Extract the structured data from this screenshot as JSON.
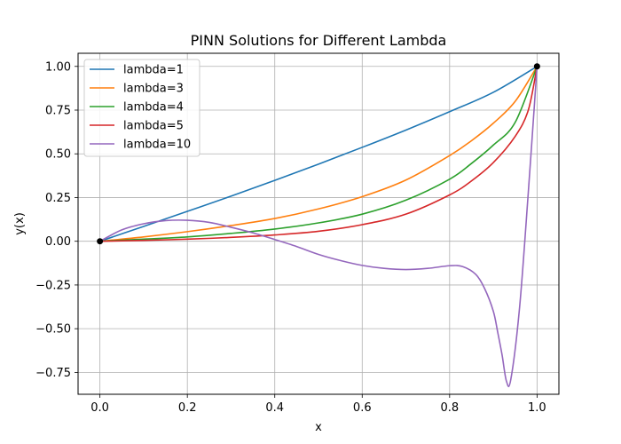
{
  "chart_data": {
    "type": "line",
    "title": "PINN Solutions for Different Lambda",
    "xlabel": "x",
    "ylabel": "y(x)",
    "xlim": [
      -0.05,
      1.05
    ],
    "ylim": [
      -0.875,
      1.075
    ],
    "xticks": [
      0.0,
      0.2,
      0.4,
      0.6,
      0.8,
      1.0
    ],
    "xtick_labels": [
      "0.0",
      "0.2",
      "0.4",
      "0.6",
      "0.8",
      "1.0"
    ],
    "yticks": [
      -0.75,
      -0.5,
      -0.25,
      0.0,
      0.25,
      0.5,
      0.75,
      1.0
    ],
    "ytick_labels": [
      "−0.75",
      "−0.50",
      "−0.25",
      "0.00",
      "0.25",
      "0.50",
      "0.75",
      "1.00"
    ],
    "grid": true,
    "legend_position": "top-left",
    "boundary_points": [
      {
        "x": 0.0,
        "y": 0.0
      },
      {
        "x": 1.0,
        "y": 1.0
      }
    ],
    "series": [
      {
        "name": "lambda=1",
        "color": "#1f77b4",
        "x": [
          0.0,
          0.1,
          0.2,
          0.3,
          0.4,
          0.5,
          0.6,
          0.7,
          0.8,
          0.9,
          1.0
        ],
        "y": [
          0.0,
          0.085,
          0.171,
          0.258,
          0.348,
          0.441,
          0.537,
          0.636,
          0.741,
          0.852,
          1.0
        ]
      },
      {
        "name": "lambda=3",
        "color": "#ff7f0e",
        "x": [
          0.0,
          0.1,
          0.2,
          0.3,
          0.4,
          0.5,
          0.6,
          0.7,
          0.8,
          0.85,
          0.9,
          0.95,
          1.0
        ],
        "y": [
          0.0,
          0.025,
          0.055,
          0.09,
          0.13,
          0.185,
          0.255,
          0.35,
          0.49,
          0.575,
          0.675,
          0.8,
          1.0
        ]
      },
      {
        "name": "lambda=4",
        "color": "#2ca02c",
        "x": [
          0.0,
          0.1,
          0.2,
          0.3,
          0.4,
          0.5,
          0.6,
          0.7,
          0.8,
          0.85,
          0.9,
          0.95,
          1.0
        ],
        "y": [
          0.0,
          0.012,
          0.025,
          0.045,
          0.07,
          0.105,
          0.155,
          0.235,
          0.355,
          0.445,
          0.55,
          0.68,
          1.0
        ]
      },
      {
        "name": "lambda=5",
        "color": "#d62728",
        "x": [
          0.0,
          0.1,
          0.2,
          0.3,
          0.4,
          0.5,
          0.6,
          0.7,
          0.8,
          0.85,
          0.9,
          0.95,
          0.98,
          1.0
        ],
        "y": [
          0.0,
          0.005,
          0.012,
          0.022,
          0.036,
          0.057,
          0.095,
          0.155,
          0.265,
          0.345,
          0.45,
          0.6,
          0.75,
          1.0
        ]
      },
      {
        "name": "lambda=10",
        "color": "#9467bd",
        "x": [
          0.0,
          0.05,
          0.1,
          0.15,
          0.2,
          0.25,
          0.3,
          0.35,
          0.4,
          0.45,
          0.5,
          0.55,
          0.6,
          0.65,
          0.7,
          0.75,
          0.8,
          0.83,
          0.86,
          0.88,
          0.9,
          0.91,
          0.92,
          0.93,
          0.94,
          0.96,
          0.98,
          1.0
        ],
        "y": [
          0.0,
          0.065,
          0.1,
          0.118,
          0.12,
          0.108,
          0.08,
          0.048,
          0.01,
          -0.03,
          -0.075,
          -0.11,
          -0.138,
          -0.155,
          -0.162,
          -0.155,
          -0.14,
          -0.145,
          -0.19,
          -0.27,
          -0.4,
          -0.52,
          -0.65,
          -0.8,
          -0.79,
          -0.38,
          0.28,
          1.0
        ]
      }
    ]
  }
}
